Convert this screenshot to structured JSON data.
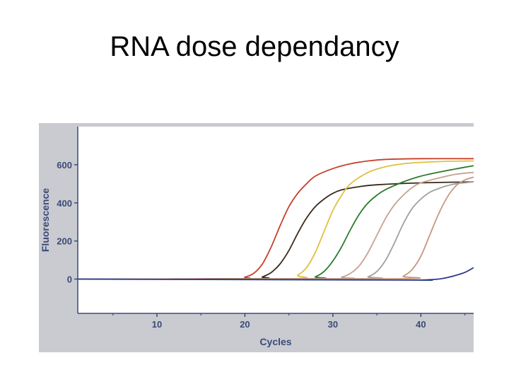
{
  "slide": {
    "title": "RNA dose dependancy"
  },
  "chart_data": {
    "type": "line",
    "xlabel": "Cycles",
    "ylabel": "Fluorescence",
    "xlim": [
      1,
      46
    ],
    "ylim": [
      -180,
      800
    ],
    "x_ticks": [
      10,
      20,
      30,
      40
    ],
    "y_ticks": [
      0,
      200,
      400,
      600
    ],
    "grid": false,
    "legend": "none",
    "colors": {
      "panel_bg": "#c9cbd0",
      "plot_bg": "#ffffff",
      "axis": "#3b4a78"
    },
    "series": [
      {
        "color": "#c8402a",
        "x": [
          1,
          19,
          20,
          21,
          22,
          23,
          24,
          25,
          26,
          27,
          28,
          30,
          32,
          34,
          36,
          40,
          46
        ],
        "y": [
          0,
          2,
          10,
          30,
          80,
          170,
          280,
          380,
          450,
          500,
          540,
          580,
          605,
          620,
          628,
          632,
          632
        ]
      },
      {
        "color": "#3a2a1a",
        "x": [
          1,
          21,
          22,
          23,
          24,
          25,
          26,
          27,
          28,
          29,
          30,
          31,
          33,
          35,
          40,
          46
        ],
        "y": [
          0,
          2,
          12,
          35,
          80,
          150,
          240,
          320,
          380,
          420,
          450,
          468,
          485,
          495,
          505,
          510
        ]
      },
      {
        "color": "#e0c040",
        "x": [
          1,
          25,
          26,
          27,
          28,
          29,
          30,
          31,
          32,
          34,
          36,
          38,
          40,
          43,
          46
        ],
        "y": [
          0,
          2,
          20,
          60,
          140,
          250,
          360,
          440,
          500,
          560,
          590,
          605,
          612,
          618,
          620
        ]
      },
      {
        "color": "#2a7a2a",
        "x": [
          1,
          27,
          28,
          29,
          30,
          31,
          32,
          33,
          34,
          35,
          36,
          38,
          40,
          43,
          46
        ],
        "y": [
          0,
          2,
          12,
          40,
          95,
          170,
          260,
          340,
          400,
          440,
          470,
          510,
          540,
          570,
          595
        ]
      },
      {
        "color": "#c8a090",
        "x": [
          1,
          30,
          31,
          32,
          33,
          34,
          35,
          36,
          37,
          38,
          39,
          40,
          42,
          44,
          46
        ],
        "y": [
          0,
          2,
          10,
          30,
          70,
          140,
          230,
          320,
          390,
          440,
          480,
          505,
          530,
          550,
          560
        ]
      },
      {
        "color": "#a0a0a0",
        "x": [
          1,
          33,
          34,
          35,
          36,
          37,
          38,
          39,
          40,
          41,
          42,
          43,
          44,
          46
        ],
        "y": [
          0,
          2,
          12,
          40,
          100,
          190,
          290,
          370,
          420,
          455,
          475,
          490,
          500,
          510
        ]
      },
      {
        "color": "#c89880",
        "x": [
          1,
          37,
          38,
          39,
          40,
          41,
          42,
          43,
          44,
          45,
          46
        ],
        "y": [
          0,
          2,
          15,
          50,
          120,
          230,
          340,
          430,
          490,
          520,
          535
        ]
      },
      {
        "color": "#2a3a8a",
        "x": [
          1,
          38,
          40,
          42,
          43,
          44,
          45,
          46
        ],
        "y": [
          0,
          -5,
          -5,
          0,
          8,
          20,
          35,
          60
        ]
      }
    ]
  }
}
